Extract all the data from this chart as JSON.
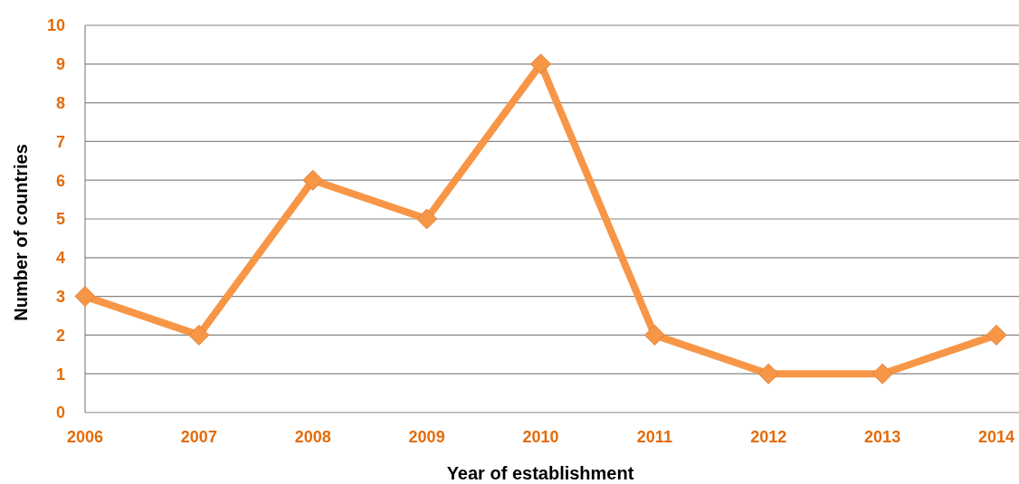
{
  "chart_data": {
    "type": "line",
    "xlabel": "Year of establishment",
    "ylabel": "Number of countries",
    "categories": [
      "2006",
      "2007",
      "2008",
      "2009",
      "2010",
      "2011",
      "2012",
      "2013",
      "2014"
    ],
    "series": [
      {
        "color": "#f79646",
        "values": [
          3,
          2,
          6,
          5,
          9,
          2,
          1,
          1,
          2
        ]
      }
    ],
    "ylim": [
      0,
      10
    ],
    "yticks": [
      0,
      1,
      2,
      3,
      4,
      5,
      6,
      7,
      8,
      9,
      10
    ],
    "grid": "y",
    "marker": "diamond",
    "line_style": "solid"
  }
}
